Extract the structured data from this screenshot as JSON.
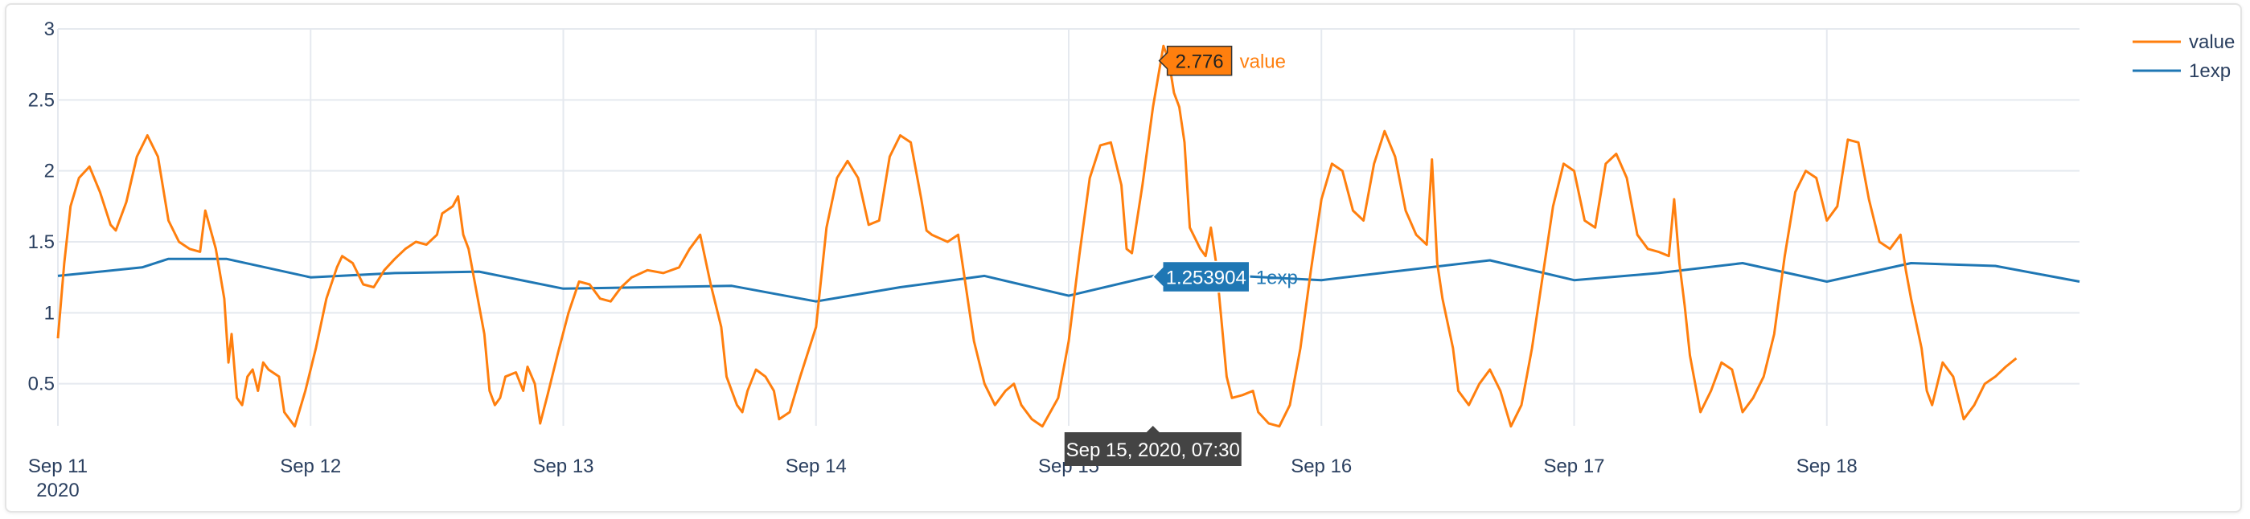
{
  "chart_data": {
    "type": "line",
    "title": "",
    "xlabel": "",
    "ylabel": "",
    "x_ticks": [
      "Sep 11",
      "Sep 12",
      "Sep 13",
      "Sep 14",
      "Sep 15",
      "Sep 16",
      "Sep 17",
      "Sep 18"
    ],
    "x_year_label": "2020",
    "xlim_hours": [
      0,
      192
    ],
    "y_ticks": [
      0.5,
      1,
      1.5,
      2,
      2.5,
      3
    ],
    "y_tick_labels": [
      "0.5",
      "1",
      "1.5",
      "2",
      "2.5",
      "3"
    ],
    "ylim": [
      0.2,
      3.05
    ],
    "grid": true,
    "legend_position": "top-right",
    "series": [
      {
        "name": "value",
        "color": "#ff7f0e",
        "points": [
          [
            0,
            0.82
          ],
          [
            0.6,
            1.35
          ],
          [
            1.2,
            1.75
          ],
          [
            2,
            1.95
          ],
          [
            3,
            2.03
          ],
          [
            4,
            1.85
          ],
          [
            5,
            1.62
          ],
          [
            5.5,
            1.58
          ],
          [
            6.5,
            1.78
          ],
          [
            7.5,
            2.1
          ],
          [
            8.5,
            2.25
          ],
          [
            9.5,
            2.1
          ],
          [
            10.5,
            1.65
          ],
          [
            11.5,
            1.5
          ],
          [
            12.5,
            1.45
          ],
          [
            13.5,
            1.43
          ],
          [
            14,
            1.72
          ],
          [
            15,
            1.45
          ],
          [
            15.8,
            1.1
          ],
          [
            16.2,
            0.65
          ],
          [
            16.5,
            0.85
          ],
          [
            17,
            0.4
          ],
          [
            17.5,
            0.35
          ],
          [
            18,
            0.55
          ],
          [
            18.5,
            0.6
          ],
          [
            19,
            0.45
          ],
          [
            19.5,
            0.65
          ],
          [
            20,
            0.6
          ],
          [
            21,
            0.55
          ],
          [
            21.5,
            0.3
          ],
          [
            22.5,
            0.2
          ],
          [
            23.5,
            0.45
          ],
          [
            24.5,
            0.75
          ],
          [
            25.5,
            1.1
          ],
          [
            26.5,
            1.32
          ],
          [
            27,
            1.4
          ],
          [
            28,
            1.35
          ],
          [
            29,
            1.2
          ],
          [
            30,
            1.18
          ],
          [
            31,
            1.3
          ],
          [
            32,
            1.38
          ],
          [
            33,
            1.45
          ],
          [
            34,
            1.5
          ],
          [
            35,
            1.48
          ],
          [
            36,
            1.55
          ],
          [
            36.5,
            1.7
          ],
          [
            37.5,
            1.75
          ],
          [
            38,
            1.82
          ],
          [
            38.5,
            1.55
          ],
          [
            39,
            1.45
          ],
          [
            40.5,
            0.85
          ],
          [
            41,
            0.45
          ],
          [
            41.5,
            0.35
          ],
          [
            42,
            0.4
          ],
          [
            42.5,
            0.55
          ],
          [
            43.5,
            0.58
          ],
          [
            44.2,
            0.45
          ],
          [
            44.6,
            0.62
          ],
          [
            45.3,
            0.5
          ],
          [
            45.8,
            0.22
          ],
          [
            46.5,
            0.42
          ],
          [
            47.5,
            0.72
          ],
          [
            48.5,
            1
          ],
          [
            49.5,
            1.22
          ],
          [
            50.5,
            1.2
          ],
          [
            51.5,
            1.1
          ],
          [
            52.5,
            1.08
          ],
          [
            53.5,
            1.18
          ],
          [
            54.5,
            1.25
          ],
          [
            56,
            1.3
          ],
          [
            57.5,
            1.28
          ],
          [
            59,
            1.32
          ],
          [
            60,
            1.45
          ],
          [
            61,
            1.55
          ],
          [
            62,
            1.2
          ],
          [
            63,
            0.9
          ],
          [
            63.5,
            0.55
          ],
          [
            64.5,
            0.35
          ],
          [
            65,
            0.3
          ],
          [
            65.5,
            0.45
          ],
          [
            66.3,
            0.6
          ],
          [
            67.2,
            0.55
          ],
          [
            68,
            0.45
          ],
          [
            68.5,
            0.25
          ],
          [
            69.5,
            0.3
          ],
          [
            70.5,
            0.55
          ],
          [
            72,
            0.9
          ],
          [
            73,
            1.6
          ],
          [
            74,
            1.95
          ],
          [
            75,
            2.07
          ],
          [
            76,
            1.95
          ],
          [
            77,
            1.62
          ],
          [
            78,
            1.65
          ],
          [
            79,
            2.1
          ],
          [
            80,
            2.25
          ],
          [
            81,
            2.2
          ],
          [
            82,
            1.8
          ],
          [
            82.5,
            1.58
          ],
          [
            83,
            1.55
          ],
          [
            84.5,
            1.5
          ],
          [
            85.5,
            1.55
          ],
          [
            86,
            1.3
          ],
          [
            86.5,
            1.05
          ],
          [
            87,
            0.8
          ],
          [
            88,
            0.5
          ],
          [
            89,
            0.35
          ],
          [
            90,
            0.45
          ],
          [
            90.8,
            0.5
          ],
          [
            91.5,
            0.35
          ],
          [
            92.5,
            0.25
          ],
          [
            93.5,
            0.2
          ],
          [
            95,
            0.4
          ],
          [
            96,
            0.8
          ],
          [
            97,
            1.4
          ],
          [
            98,
            1.95
          ],
          [
            99,
            2.18
          ],
          [
            100,
            2.2
          ],
          [
            101,
            1.9
          ],
          [
            101.5,
            1.45
          ],
          [
            102,
            1.42
          ],
          [
            103,
            1.9
          ],
          [
            104,
            2.45
          ],
          [
            105,
            2.88
          ],
          [
            105.5,
            2.78
          ],
          [
            106,
            2.55
          ],
          [
            106.5,
            2.45
          ],
          [
            107,
            2.2
          ],
          [
            107.5,
            1.6
          ],
          [
            108.5,
            1.45
          ],
          [
            109,
            1.4
          ],
          [
            109.5,
            1.6
          ],
          [
            110,
            1.35
          ],
          [
            110.5,
            0.95
          ],
          [
            111,
            0.55
          ],
          [
            111.5,
            0.4
          ],
          [
            112.5,
            0.42
          ],
          [
            113.5,
            0.45
          ],
          [
            114,
            0.3
          ],
          [
            115,
            0.22
          ],
          [
            116,
            0.2
          ],
          [
            117,
            0.35
          ],
          [
            118,
            0.75
          ],
          [
            119,
            1.3
          ],
          [
            120,
            1.8
          ],
          [
            121,
            2.05
          ],
          [
            122,
            2
          ],
          [
            123,
            1.72
          ],
          [
            124,
            1.65
          ],
          [
            125,
            2.05
          ],
          [
            126,
            2.28
          ],
          [
            127,
            2.1
          ],
          [
            128,
            1.72
          ],
          [
            129,
            1.55
          ],
          [
            130,
            1.48
          ],
          [
            130.5,
            2.08
          ],
          [
            131,
            1.35
          ],
          [
            131.5,
            1.1
          ],
          [
            132.5,
            0.75
          ],
          [
            133,
            0.45
          ],
          [
            134,
            0.35
          ],
          [
            135,
            0.5
          ],
          [
            136,
            0.6
          ],
          [
            137,
            0.45
          ],
          [
            138,
            0.2
          ],
          [
            139,
            0.35
          ],
          [
            140,
            0.75
          ],
          [
            141,
            1.25
          ],
          [
            142,
            1.75
          ],
          [
            143,
            2.05
          ],
          [
            144,
            2
          ],
          [
            145,
            1.65
          ],
          [
            146,
            1.6
          ],
          [
            147,
            2.05
          ],
          [
            148,
            2.12
          ],
          [
            149,
            1.95
          ],
          [
            150,
            1.55
          ],
          [
            151,
            1.45
          ],
          [
            152,
            1.43
          ],
          [
            153,
            1.4
          ],
          [
            153.5,
            1.8
          ],
          [
            154,
            1.35
          ],
          [
            154.5,
            1.05
          ],
          [
            155,
            0.7
          ],
          [
            156,
            0.3
          ],
          [
            157,
            0.45
          ],
          [
            158,
            0.65
          ],
          [
            159,
            0.6
          ],
          [
            160,
            0.3
          ],
          [
            161,
            0.4
          ],
          [
            162,
            0.55
          ],
          [
            163,
            0.85
          ],
          [
            164,
            1.4
          ],
          [
            165,
            1.85
          ],
          [
            166,
            2
          ],
          [
            167,
            1.95
          ],
          [
            168,
            1.65
          ],
          [
            169,
            1.75
          ],
          [
            170,
            2.22
          ],
          [
            171,
            2.2
          ],
          [
            172,
            1.8
          ],
          [
            173,
            1.5
          ],
          [
            174,
            1.45
          ],
          [
            175,
            1.55
          ],
          [
            175.5,
            1.3
          ],
          [
            176,
            1.1
          ],
          [
            177,
            0.75
          ],
          [
            177.5,
            0.45
          ],
          [
            178,
            0.35
          ],
          [
            179,
            0.65
          ],
          [
            180,
            0.55
          ],
          [
            181,
            0.25
          ],
          [
            182,
            0.35
          ],
          [
            183,
            0.5
          ],
          [
            184,
            0.55
          ],
          [
            185,
            0.62
          ],
          [
            186,
            0.68
          ]
        ]
      },
      {
        "name": "1exp",
        "color": "#1f77b4",
        "points": [
          [
            0,
            1.26
          ],
          [
            8,
            1.32
          ],
          [
            10.5,
            1.38
          ],
          [
            16,
            1.38
          ],
          [
            24,
            1.25
          ],
          [
            32,
            1.28
          ],
          [
            40,
            1.29
          ],
          [
            48,
            1.17
          ],
          [
            56,
            1.18
          ],
          [
            64,
            1.19
          ],
          [
            72,
            1.08
          ],
          [
            80,
            1.18
          ],
          [
            88,
            1.26
          ],
          [
            96,
            1.12
          ],
          [
            104,
            1.26
          ],
          [
            112,
            1.26
          ],
          [
            120,
            1.23
          ],
          [
            128,
            1.3
          ],
          [
            136,
            1.37
          ],
          [
            144,
            1.23
          ],
          [
            152,
            1.28
          ],
          [
            160,
            1.35
          ],
          [
            168,
            1.22
          ],
          [
            176,
            1.35
          ],
          [
            184,
            1.33
          ],
          [
            192,
            1.22
          ]
        ]
      }
    ],
    "hover": {
      "x_label": "Sep 15, 2020, 07:30",
      "value_label": "2.776",
      "value_name": "value",
      "exp_label": "1.253904",
      "exp_name": "1exp",
      "value_point": [
        104.6,
        2.776
      ],
      "exp_point": [
        104,
        1.253904
      ]
    }
  }
}
